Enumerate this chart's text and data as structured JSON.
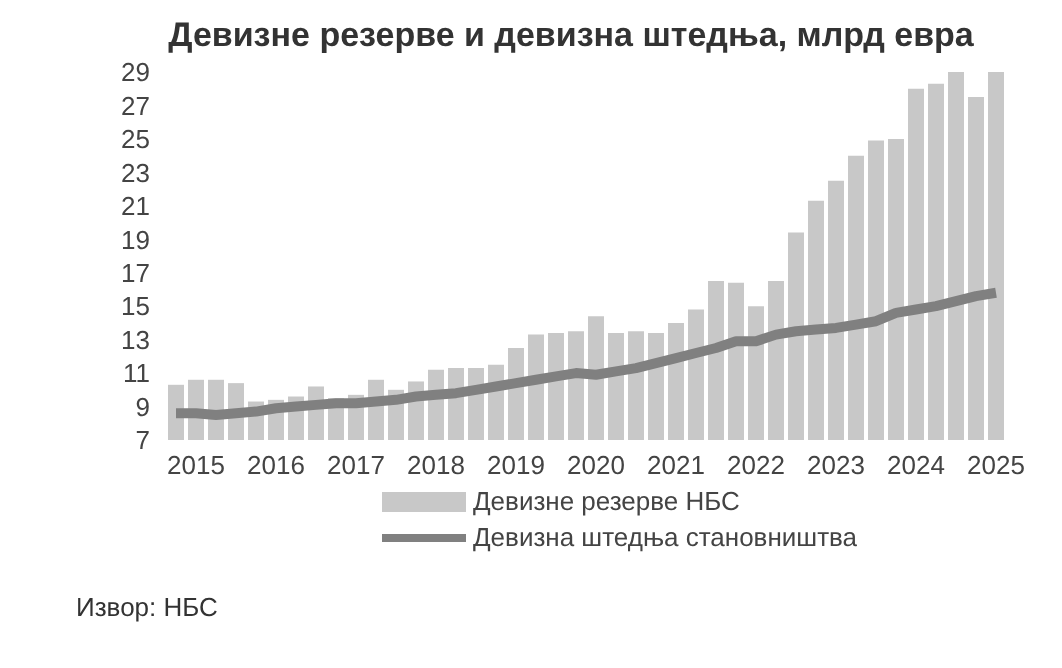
{
  "chart_data": {
    "type": "bar",
    "title": "Девизне резерве и девизна штедња, млрд евра",
    "categories": [
      null,
      "2015",
      null,
      null,
      null,
      "2016",
      null,
      null,
      null,
      "2017",
      null,
      null,
      null,
      "2018",
      null,
      null,
      null,
      "2019",
      null,
      null,
      null,
      "2020",
      null,
      null,
      null,
      "2021",
      null,
      null,
      null,
      "2022",
      null,
      null,
      null,
      "2023",
      null,
      null,
      null,
      "2024",
      null,
      null,
      null,
      "2025"
    ],
    "series": [
      {
        "name": "Девизне резерве НБС",
        "color": "#c8c8c8",
        "values": [
          10.3,
          10.6,
          10.6,
          10.4,
          9.3,
          9.4,
          9.6,
          10.2,
          9.5,
          9.7,
          10.6,
          10.0,
          10.5,
          11.2,
          11.3,
          11.3,
          11.5,
          12.5,
          13.3,
          13.4,
          13.5,
          14.4,
          13.4,
          13.5,
          13.4,
          14.0,
          14.8,
          16.5,
          16.4,
          15.0,
          16.5,
          19.4,
          21.3,
          22.5,
          24.0,
          24.9,
          25.0,
          28.0,
          28.3,
          29.0,
          27.5,
          29.0
        ]
      },
      {
        "name": "Девизна штедња становништва",
        "type": "line",
        "color": "#808080",
        "values": [
          8.6,
          8.6,
          8.5,
          8.6,
          8.7,
          8.9,
          9.0,
          9.1,
          9.2,
          9.2,
          9.3,
          9.4,
          9.6,
          9.7,
          9.8,
          10.0,
          10.2,
          10.4,
          10.6,
          10.8,
          11.0,
          10.9,
          11.1,
          11.3,
          11.6,
          11.9,
          12.2,
          12.5,
          12.9,
          12.9,
          13.3,
          13.5,
          13.6,
          13.7,
          13.9,
          14.1,
          14.6,
          14.8,
          15.0,
          15.3,
          15.6,
          15.8
        ]
      }
    ],
    "ylim": [
      7,
      29
    ],
    "yticks": [
      7,
      9,
      11,
      13,
      15,
      17,
      19,
      21,
      23,
      25,
      27,
      29
    ],
    "grid": false,
    "legend": "bottom",
    "marker": "none",
    "line_style": "solid",
    "annotations": [
      "Извор: НБС"
    ]
  }
}
